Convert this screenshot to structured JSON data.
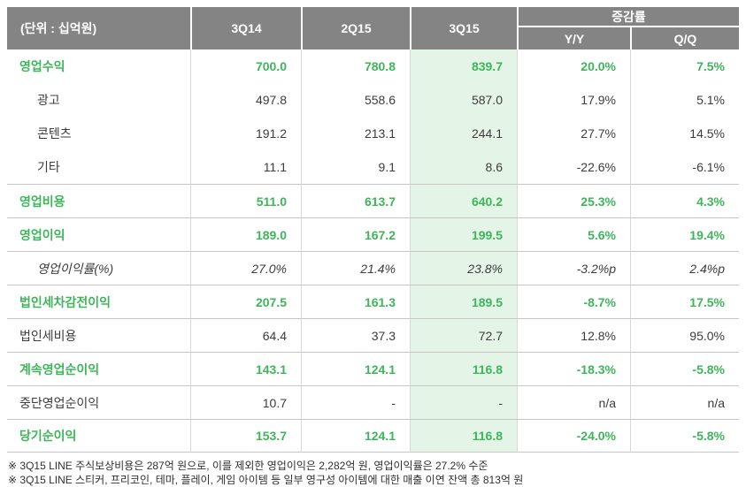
{
  "colors": {
    "header_bg": "#848484",
    "accent_green": "#3db65a",
    "highlight_column_bg": "#e4f5e8"
  },
  "header": {
    "unit_label": "(단위 : 십억원)",
    "columns": [
      "3Q14",
      "2Q15",
      "3Q15"
    ],
    "change_group_label": "증감률",
    "change_columns": [
      "Y/Y",
      "Q/Q"
    ]
  },
  "table": {
    "highlight_column": "3Q15",
    "rows": [
      {
        "label": "영업수익",
        "style": "green",
        "topline": false,
        "values": [
          "700.0",
          "780.8",
          "839.7",
          "20.0%",
          "7.5%"
        ]
      },
      {
        "label": "광고",
        "style": "sub",
        "topline": false,
        "values": [
          "497.8",
          "558.6",
          "587.0",
          "17.9%",
          "5.1%"
        ]
      },
      {
        "label": "콘텐츠",
        "style": "sub",
        "topline": false,
        "values": [
          "191.2",
          "213.1",
          "244.1",
          "27.7%",
          "14.5%"
        ]
      },
      {
        "label": "기타",
        "style": "sub",
        "topline": false,
        "values": [
          "11.1",
          "9.1",
          "8.6",
          "-22.6%",
          "-6.1%"
        ]
      },
      {
        "label": "영업비용",
        "style": "green",
        "topline": true,
        "values": [
          "511.0",
          "613.7",
          "640.2",
          "25.3%",
          "4.3%"
        ]
      },
      {
        "label": "영업이익",
        "style": "green",
        "topline": true,
        "values": [
          "189.0",
          "167.2",
          "199.5",
          "5.6%",
          "19.4%"
        ]
      },
      {
        "label": "영업이익률(%)",
        "style": "italic",
        "topline": true,
        "values": [
          "27.0%",
          "21.4%",
          "23.8%",
          "-3.2%p",
          "2.4%p"
        ]
      },
      {
        "label": "법인세차감전이익",
        "style": "green",
        "topline": true,
        "values": [
          "207.5",
          "161.3",
          "189.5",
          "-8.7%",
          "17.5%"
        ]
      },
      {
        "label": "법인세비용",
        "style": "plain",
        "topline": true,
        "values": [
          "64.4",
          "37.3",
          "72.7",
          "12.8%",
          "95.0%"
        ]
      },
      {
        "label": "계속영업순이익",
        "style": "green",
        "topline": true,
        "values": [
          "143.1",
          "124.1",
          "116.8",
          "-18.3%",
          "-5.8%"
        ]
      },
      {
        "label": "중단영업순이익",
        "style": "plain",
        "topline": true,
        "values": [
          "10.7",
          "-",
          "-",
          "n/a",
          "n/a"
        ]
      },
      {
        "label": "당기순이익",
        "style": "green",
        "topline": true,
        "values": [
          "153.7",
          "124.1",
          "116.8",
          "-24.0%",
          "-5.8%"
        ]
      }
    ]
  },
  "footnotes": [
    "※ 3Q15 LINE 주식보상비용은 287억 원으로, 이를 제외한 영업이익은 2,282억 원, 영업이익률은 27.2% 수준",
    "※ 3Q15 LINE 스티커, 프리코인, 테마, 플레이, 게임 아이템 등 일부 영구성 아이템에 대한 매출 이연 잔액 총 813억 원"
  ]
}
